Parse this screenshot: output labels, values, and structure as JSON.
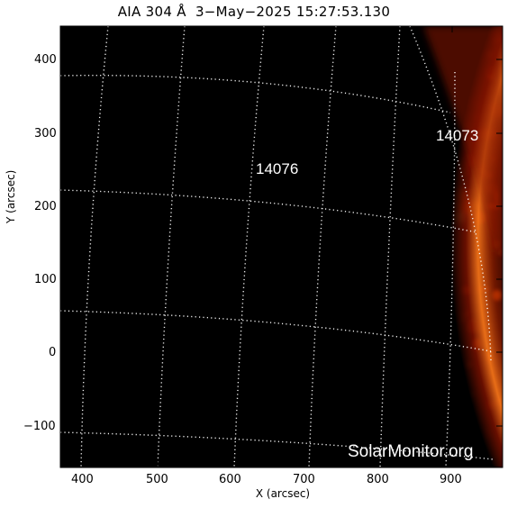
{
  "title": "AIA 304 Å  3−May−2025 15:27:53.130",
  "xlabel": "X (arcsec)",
  "ylabel": "Y (arcsec)",
  "watermark": "SolarMonitor.org",
  "x_ticks": [
    "400",
    "500",
    "600",
    "700",
    "800",
    "900"
  ],
  "y_ticks": [
    "400",
    "300",
    "200",
    "100",
    "0",
    "−100"
  ],
  "regions": [
    "14076",
    "14073"
  ],
  "colors": {
    "background": "#ffffff",
    "disk_dark": "#1a0000",
    "disk_mid": "#5a0e00",
    "plage": "#c23a00",
    "plage_bright": "#ffb347",
    "grid": "#ffffff"
  }
}
